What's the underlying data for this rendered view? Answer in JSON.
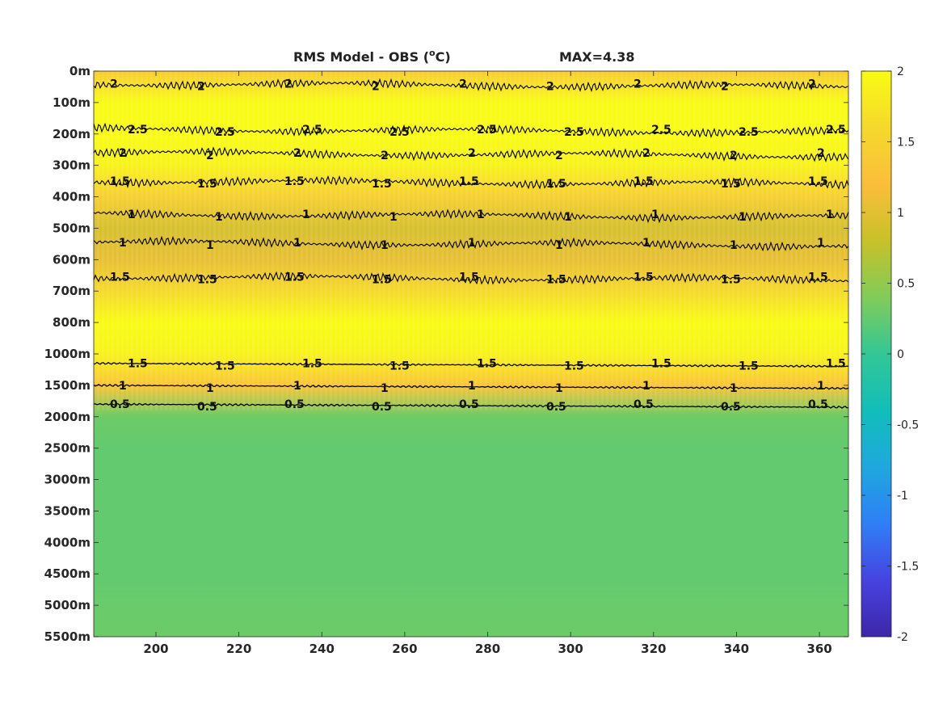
{
  "chart_data": {
    "type": "heatmap",
    "title": "RMS Model - OBS (",
    "title_sup": "o",
    "title_unit": "C)",
    "annotation": "MAX=4.38",
    "xlabel": "",
    "ylabel": "",
    "xlim": [
      185,
      367
    ],
    "x_ticks": [
      200,
      220,
      240,
      260,
      280,
      300,
      320,
      340,
      360
    ],
    "x_tick_labels": [
      "200",
      "220",
      "240",
      "260",
      "280",
      "300",
      "320",
      "340",
      "360"
    ],
    "y_tick_labels": [
      "0m",
      "100m",
      "200m",
      "300m",
      "400m",
      "500m",
      "600m",
      "700m",
      "800m",
      "1000m",
      "1500m",
      "2000m",
      "2500m",
      "3000m",
      "3500m",
      "4000m",
      "4500m",
      "5000m",
      "5500m"
    ],
    "y_reversed": true,
    "colorbar": {
      "clim": [
        -2,
        2
      ],
      "ticks": [
        2,
        1.5,
        1,
        0.5,
        0,
        -0.5,
        -1,
        -1.5,
        -2
      ],
      "tick_labels": [
        "2",
        "1.5",
        "1",
        "0.5",
        "0",
        "-0.5",
        "-1",
        "-1.5",
        "-2"
      ],
      "colormap": "parula",
      "colors": [
        "#3e26a8",
        "#4743e0",
        "#2f7ff5",
        "#1fa8de",
        "#12beb9",
        "#32c796",
        "#81cc59",
        "#c8c129",
        "#fbbe3b",
        "#f5d92c",
        "#f9fb15"
      ]
    },
    "field_profile": {
      "depth_levels": [
        "0m",
        "100m",
        "200m",
        "300m",
        "400m",
        "500m",
        "600m",
        "700m",
        "800m",
        "1000m",
        "1500m",
        "2000m",
        "2500m",
        "3000m",
        "3500m",
        "4000m",
        "4500m",
        "5000m",
        "5500m"
      ],
      "rms_values": [
        1.4,
        2.2,
        2.6,
        1.9,
        1.45,
        0.9,
        1.05,
        1.6,
        2.3,
        1.9,
        1.3,
        0.3,
        0.25,
        0.25,
        0.25,
        0.25,
        0.25,
        0.28,
        0.3
      ]
    },
    "contours": [
      {
        "level": 0.5,
        "label": "0.5",
        "depth_index": 10.6,
        "noisy": false
      },
      {
        "level": 1,
        "label": "1",
        "depth_index": 10.0,
        "noisy": false
      },
      {
        "level": 1.5,
        "label": "1.5",
        "depth_index": 9.3,
        "noisy": false
      },
      {
        "level": 1.5,
        "label": "1.5",
        "depth_index": 6.55,
        "noisy": true
      },
      {
        "level": 1,
        "label": "1",
        "depth_index": 5.45,
        "noisy": true
      },
      {
        "level": 1,
        "label": "1",
        "depth_index": 4.55,
        "noisy": true
      },
      {
        "level": 1.5,
        "label": "1.5",
        "depth_index": 3.5,
        "noisy": true
      },
      {
        "level": 2,
        "label": "2",
        "depth_index": 2.6,
        "noisy": true
      },
      {
        "level": 2.5,
        "label": "2.5",
        "depth_index": 1.85,
        "noisy": true
      },
      {
        "level": 2,
        "label": "2",
        "depth_index": 0.4,
        "noisy": true
      }
    ]
  }
}
